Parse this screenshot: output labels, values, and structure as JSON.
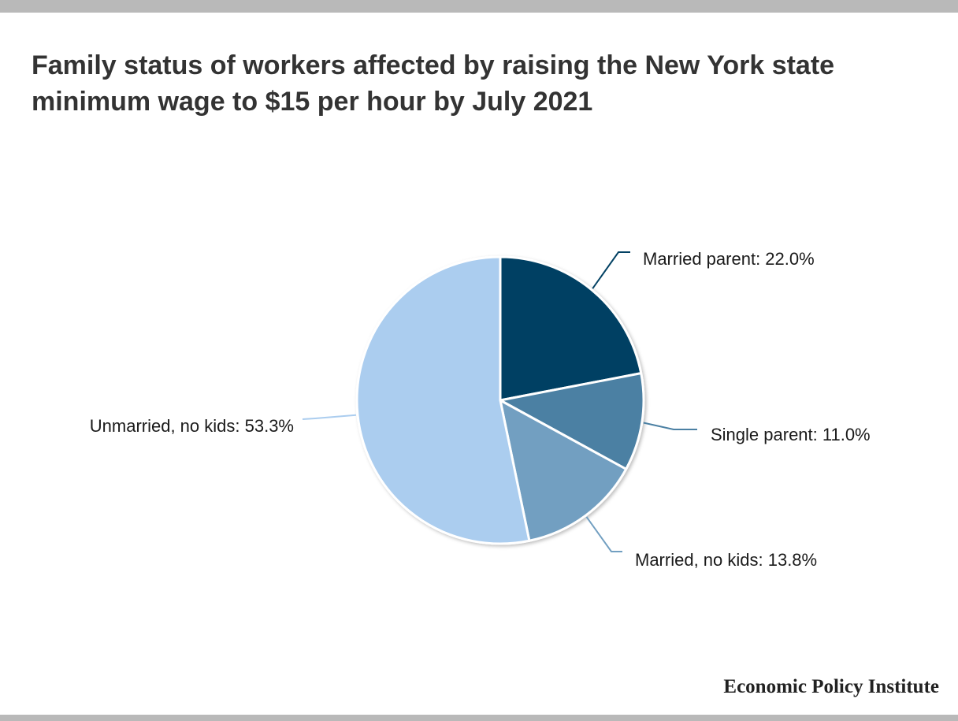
{
  "header": {
    "title": "Family status of workers affected by raising the New York state minimum wage to $15 per hour by July 2021"
  },
  "footer": {
    "source": "Economic Policy Institute"
  },
  "chart_data": {
    "type": "pie",
    "title": "Family status of workers affected by raising the New York state minimum wage to $15 per hour by July 2021",
    "categories": [
      "Married parent",
      "Single parent",
      "Married, no kids",
      "Unmarried, no kids"
    ],
    "values": [
      22.0,
      11.0,
      13.8,
      53.3
    ],
    "labels": [
      "Married parent: 22.0%",
      "Single parent: 11.0%",
      "Married, no kids: 13.8%",
      "Unmarried, no kids: 53.3%"
    ],
    "colors": [
      "#024163",
      "#4b80a3",
      "#729fc1",
      "#abcdef"
    ],
    "legend": "none",
    "start": "top",
    "direction": "clockwise"
  }
}
